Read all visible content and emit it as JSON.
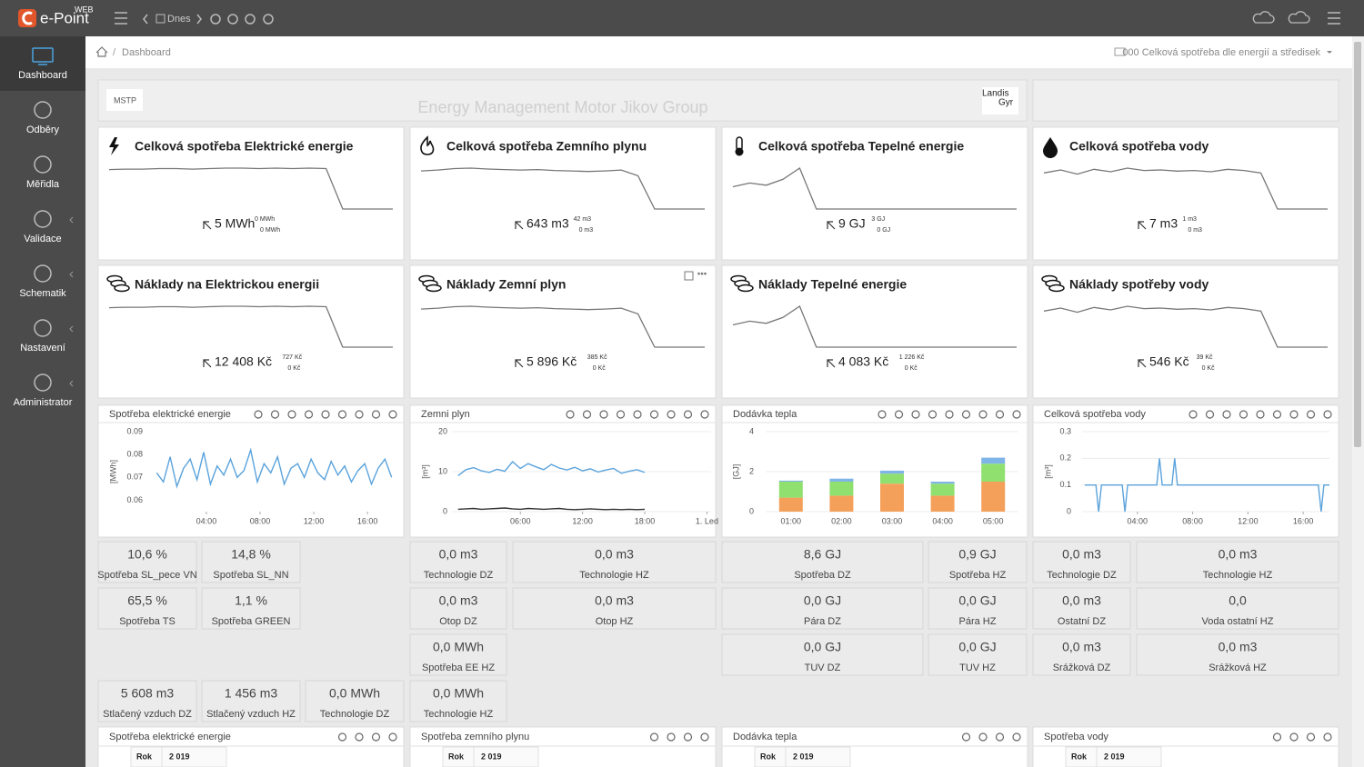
{
  "topbar": {
    "brand": "e-Point",
    "edition": "WEB",
    "date_nav": "Dnes"
  },
  "sidebar": {
    "items": [
      "Dashboard",
      "Odběry",
      "Měřidla",
      "Validace",
      "Schematik",
      "Nastavení",
      "Administrator"
    ]
  },
  "breadcrumb": {
    "current": "Dashboard",
    "selector": "000 Celková spotřeba dle energií a středisek"
  },
  "header": {
    "logo_left": "MSTP",
    "title": "Energy Management Motor Jikov Group",
    "logo_right": [
      "Landis",
      "Gyr"
    ]
  },
  "kpis": [
    {
      "title": "Celková spotřeba Elektrické energie",
      "value": "5 MWh",
      "up": "0 MWh",
      "down": "0 MWh",
      "sparkline": [
        82,
        83,
        83,
        84,
        84,
        83,
        84,
        85,
        85,
        84,
        85,
        84,
        85,
        84,
        0,
        0,
        0,
        0
      ]
    },
    {
      "title": "Celková spotřeba Zemního plynu",
      "value": "643 m3",
      "up": "42 m3",
      "down": "0 m3",
      "sparkline": [
        80,
        82,
        85,
        86,
        84,
        83,
        82,
        83,
        81,
        80,
        79,
        80,
        82,
        70,
        0,
        0,
        0,
        0
      ]
    },
    {
      "title": "Celková spotřeba Tepelné energie",
      "value": "9 GJ",
      "up": "3 GJ",
      "down": "0 GJ",
      "sparkline": [
        30,
        35,
        32,
        40,
        55,
        0,
        0,
        0,
        0,
        0,
        0,
        0,
        0,
        0,
        0,
        0,
        0,
        0
      ]
    },
    {
      "title": "Celková spotřeba vody",
      "value": "7 m3",
      "up": "1 m3",
      "down": "0 m3",
      "sparkline": [
        60,
        65,
        58,
        66,
        62,
        68,
        64,
        65,
        63,
        64,
        62,
        66,
        64,
        60,
        0,
        0,
        0,
        0
      ]
    },
    {
      "title": "Náklady na Elektrickou energii",
      "value": "12 408 Kč",
      "up": "727 Kč",
      "down": "0 Kč",
      "sparkline": [
        82,
        83,
        83,
        84,
        84,
        83,
        84,
        85,
        85,
        84,
        85,
        84,
        85,
        84,
        0,
        0,
        0,
        0
      ]
    },
    {
      "title": "Náklady Zemní plyn",
      "value": "5 896 Kč",
      "up": "385 Kč",
      "down": "0 Kč",
      "sparkline": [
        80,
        82,
        85,
        86,
        84,
        83,
        82,
        83,
        81,
        80,
        79,
        80,
        82,
        70,
        0,
        0,
        0,
        0
      ]
    },
    {
      "title": "Náklady Tepelné energie",
      "value": "4 083 Kč",
      "up": "1 226 Kč",
      "down": "0 Kč",
      "sparkline": [
        30,
        35,
        32,
        40,
        55,
        0,
        0,
        0,
        0,
        0,
        0,
        0,
        0,
        0,
        0,
        0,
        0,
        0
      ]
    },
    {
      "title": "Náklady spotřeby vody",
      "value": "546 Kč",
      "up": "39 Kč",
      "down": "0 Kč",
      "sparkline": [
        60,
        65,
        58,
        66,
        62,
        68,
        64,
        65,
        63,
        64,
        62,
        66,
        64,
        60,
        0,
        0,
        0,
        0
      ]
    }
  ],
  "chart_data": [
    {
      "type": "line",
      "title": "Spotřeba elektrické energie",
      "y_label": "[MWh]",
      "grid": false,
      "x": [
        0.3,
        0.8,
        1.3,
        1.8,
        2.3,
        2.8,
        3.3,
        3.8,
        4.3,
        4.8,
        5.3,
        5.8,
        6.3,
        6.8,
        7.3,
        7.8,
        8.3,
        8.8,
        9.3,
        9.8,
        10.3,
        10.8,
        11.3,
        11.8,
        12.3,
        12.8,
        13.3,
        13.8,
        14.3,
        14.8,
        15.3,
        15.8,
        16.3,
        16.8,
        17.3,
        17.8
      ],
      "series": [
        {
          "color": "#5ba3dc",
          "values": [
            0.072,
            0.068,
            0.079,
            0.066,
            0.074,
            0.078,
            0.069,
            0.081,
            0.067,
            0.075,
            0.071,
            0.078,
            0.07,
            0.073,
            0.082,
            0.068,
            0.076,
            0.072,
            0.079,
            0.067,
            0.074,
            0.076,
            0.07,
            0.078,
            0.072,
            0.069,
            0.077,
            0.071,
            0.075,
            0.068,
            0.073,
            0.076,
            0.067,
            0.074,
            0.078,
            0.07
          ]
        }
      ],
      "xlim": [
        -0.4,
        18.5
      ],
      "xticks": [
        {
          "value": 4,
          "label": "04:00"
        },
        {
          "value": 8,
          "label": "08:00"
        },
        {
          "value": 12,
          "label": "12:00"
        },
        {
          "value": 16,
          "label": "16:00"
        }
      ],
      "ylim": [
        0.055,
        0.09
      ],
      "yticks": [
        0.06,
        0.07,
        0.08,
        0.09
      ]
    },
    {
      "type": "line",
      "title": "Zemni plyn",
      "y_label": "[m³]",
      "grid": true,
      "x": [
        0,
        0.75,
        1.5,
        2.25,
        3,
        3.75,
        4.5,
        5.25,
        6,
        6.75,
        7.5,
        8.25,
        9,
        9.75,
        10.5,
        11.25,
        12,
        12.75,
        13.5,
        14.25,
        15,
        15.75,
        16.5,
        17.25,
        18
      ],
      "series": [
        {
          "color": "#5ba3dc",
          "values": [
            9,
            10.5,
            11,
            10.2,
            9.8,
            10.6,
            10.1,
            12.5,
            10.8,
            12,
            11.2,
            10.5,
            11.8,
            10.9,
            10.4,
            11.1,
            10.2,
            10.7,
            9.9,
            10.4,
            10.8,
            9.6,
            10.1,
            10.5,
            9.8
          ]
        },
        {
          "color": "#333333",
          "values": [
            0.6,
            0.7,
            0.8,
            0.6,
            0.7,
            0.8,
            0.9,
            0.7,
            0.6,
            0.8,
            0.7,
            0.6,
            0.7,
            0.8,
            0.6,
            0.5,
            0.6,
            0.7,
            0.6,
            0.5,
            0.6,
            0.5,
            0.6,
            0.5,
            0.6
          ]
        }
      ],
      "xlim": [
        -0.6,
        24.4
      ],
      "xticks": [
        {
          "value": 6,
          "label": "06:00"
        },
        {
          "value": 12,
          "label": "12:00"
        },
        {
          "value": 18,
          "label": "18:00"
        },
        {
          "value": 24,
          "label": "1. Led"
        }
      ],
      "ylim": [
        0,
        20
      ],
      "yticks": [
        0,
        10,
        20
      ]
    },
    {
      "type": "stacked-bar",
      "title": "Dodávka tepla",
      "y_label": "[GJ]",
      "grid": true,
      "categories": [
        "01:00",
        "02:00",
        "03:00",
        "04:00",
        "05:00"
      ],
      "series": [
        {
          "color": "#f5a05a",
          "values": [
            0.7,
            0.8,
            1.4,
            0.8,
            1.5
          ]
        },
        {
          "color": "#90e070",
          "values": [
            0.8,
            0.7,
            0.5,
            0.6,
            0.9
          ]
        },
        {
          "color": "#7fb4e8",
          "values": [
            0.05,
            0.15,
            0.15,
            0.1,
            0.3
          ]
        }
      ],
      "ylim": [
        0,
        4
      ],
      "yticks": [
        0,
        2,
        4
      ]
    },
    {
      "type": "line",
      "title": "Celková spotřeba vody",
      "y_label": "[m³]",
      "grid": true,
      "x": [
        0.2,
        1.0,
        1.2,
        1.4,
        2.9,
        3.1,
        3.3,
        5.4,
        5.6,
        5.8,
        6.5,
        6.7,
        6.9,
        17.1,
        17.3,
        17.5,
        17.9
      ],
      "series": [
        {
          "color": "#5ba3dc",
          "values": [
            0.1,
            0.1,
            0,
            0.1,
            0.1,
            0,
            0.1,
            0.1,
            0.2,
            0.1,
            0.1,
            0.2,
            0.1,
            0.1,
            0,
            0.1,
            0.1
          ]
        }
      ],
      "xlim": [
        0,
        17.9
      ],
      "xticks": [
        {
          "value": 4,
          "label": "04:00"
        },
        {
          "value": 8,
          "label": "08:00"
        },
        {
          "value": 12,
          "label": "12:00"
        },
        {
          "value": 16,
          "label": "16:00"
        }
      ],
      "ylim": [
        0,
        0.3
      ],
      "yticks": [
        0,
        0.1,
        0.2,
        0.3
      ]
    }
  ],
  "tiles": [
    [
      {
        "value": "10,6 %",
        "label": "Spotřeba SL_pece VN"
      },
      {
        "value": "14,8 %",
        "label": "Spotřeba SL_NN"
      },
      {
        "value": "65,5 %",
        "label": "Spotřeba TS"
      },
      {
        "value": "1,1 %",
        "label": "Spotřeba GREEN"
      },
      {
        "value": "5 608 m3",
        "label": "Stlačený vzduch DZ"
      },
      {
        "value": "1 456 m3",
        "label": "Stlačený vzduch HZ"
      },
      {
        "value": "0,0 MWh",
        "label": "Technologie DZ"
      }
    ],
    [
      {
        "value": "0,0 m3",
        "label": "Technologie DZ"
      },
      {
        "value": "0,0 m3",
        "label": "Technologie HZ"
      },
      {
        "value": "0,0 m3",
        "label": "Otop DZ"
      },
      {
        "value": "0,0 m3",
        "label": "Otop HZ"
      },
      {
        "value": "0,0 MWh",
        "label": "Spotřeba EE HZ"
      },
      {
        "value": "0,0 MWh",
        "label": "Technologie HZ"
      }
    ],
    [
      {
        "value": "8,6 GJ",
        "label": "Spotřeba DZ"
      },
      {
        "value": "0,9 GJ",
        "label": "Spotřeba HZ"
      },
      {
        "value": "0,0 GJ",
        "label": "Pára DZ"
      },
      {
        "value": "0,0 GJ",
        "label": "Pára HZ"
      },
      {
        "value": "0,0 GJ",
        "label": "TUV DZ"
      },
      {
        "value": "0,0 GJ",
        "label": "TUV HZ"
      }
    ],
    [
      {
        "value": "0,0 m3",
        "label": "Technologie DZ"
      },
      {
        "value": "0,0 m3",
        "label": "Technologie HZ"
      },
      {
        "value": "0,0 m3",
        "label": "Ostatní DZ"
      },
      {
        "value": "0,0",
        "label": "Voda ostatní HZ"
      },
      {
        "value": "0,0 m3",
        "label": "Srážková DZ"
      },
      {
        "value": "0,0 m3",
        "label": "Srážková HZ"
      }
    ]
  ],
  "tables": [
    {
      "title": "Spotřeba elektrické energie",
      "header": [
        "Rok",
        "2 019"
      ]
    },
    {
      "title": "Spotřeba zemního plynu",
      "header": [
        "Rok",
        "2 019"
      ]
    },
    {
      "title": "Dodávka tepla",
      "header": [
        "Rok",
        "2 019"
      ]
    },
    {
      "title": "Spotřeba vody",
      "header": [
        "Rok",
        "2 019"
      ]
    }
  ]
}
